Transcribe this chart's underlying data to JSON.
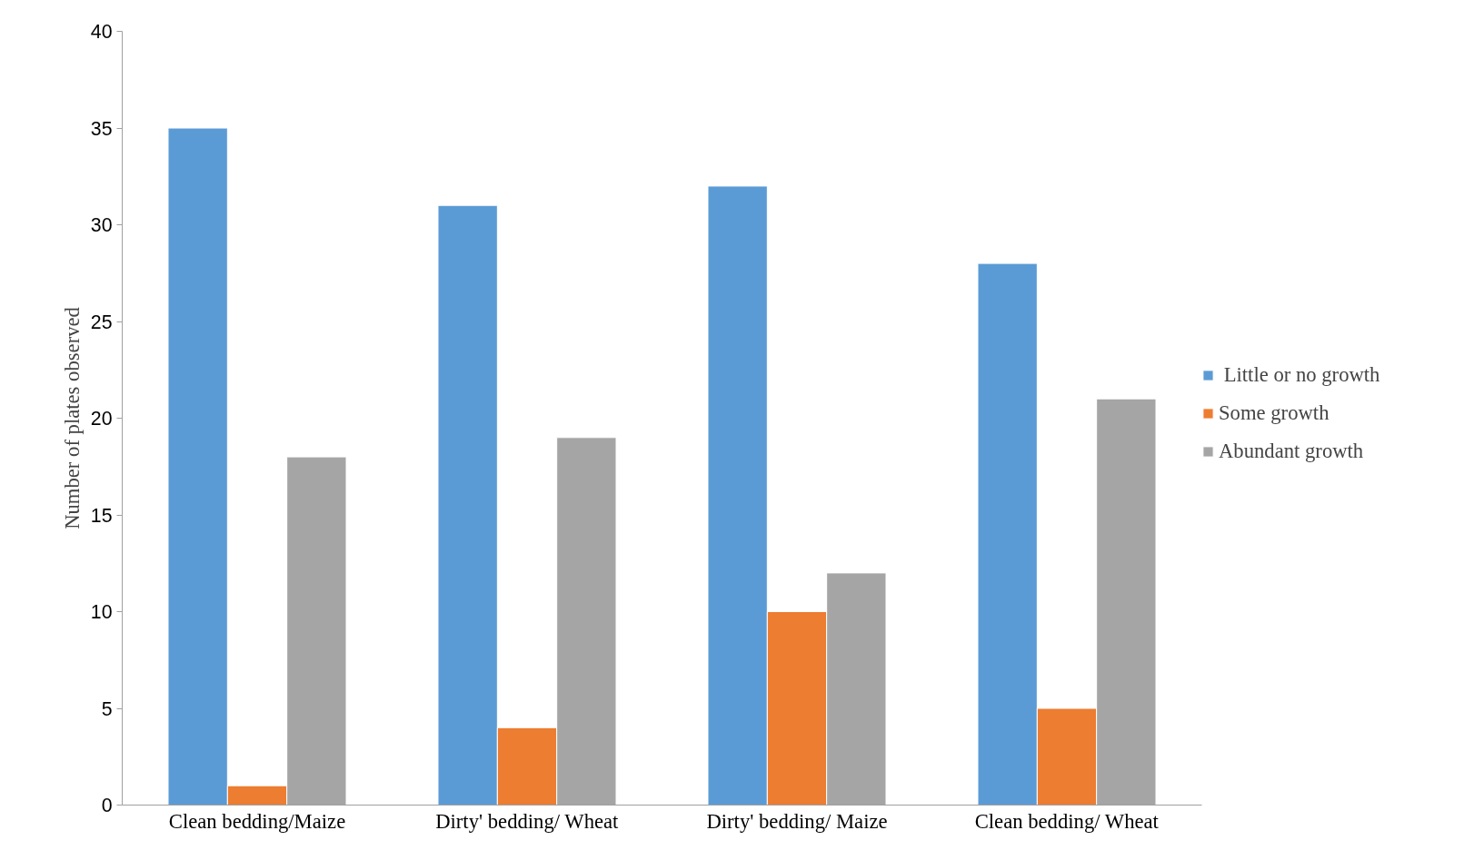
{
  "chart_data": {
    "type": "bar",
    "ylabel": "Number of plates observed",
    "categories": [
      "Clean bedding/Maize",
      "Dirty' bedding/ Wheat",
      "Dirty' bedding/ Maize",
      "Clean bedding/ Wheat"
    ],
    "series": [
      {
        "name": " Little or no growth",
        "color": "#5b9bd5",
        "values": [
          35,
          31,
          32,
          28
        ]
      },
      {
        "name": "Some growth",
        "color": "#ed7d31",
        "values": [
          1,
          4,
          10,
          5
        ]
      },
      {
        "name": "Abundant growth",
        "color": "#a5a5a5",
        "values": [
          18,
          19,
          12,
          21
        ]
      }
    ],
    "ylim": [
      0,
      40
    ],
    "yticks": [
      0,
      5,
      10,
      15,
      20,
      25,
      30,
      35,
      40
    ],
    "grid": false,
    "legend": "right"
  }
}
